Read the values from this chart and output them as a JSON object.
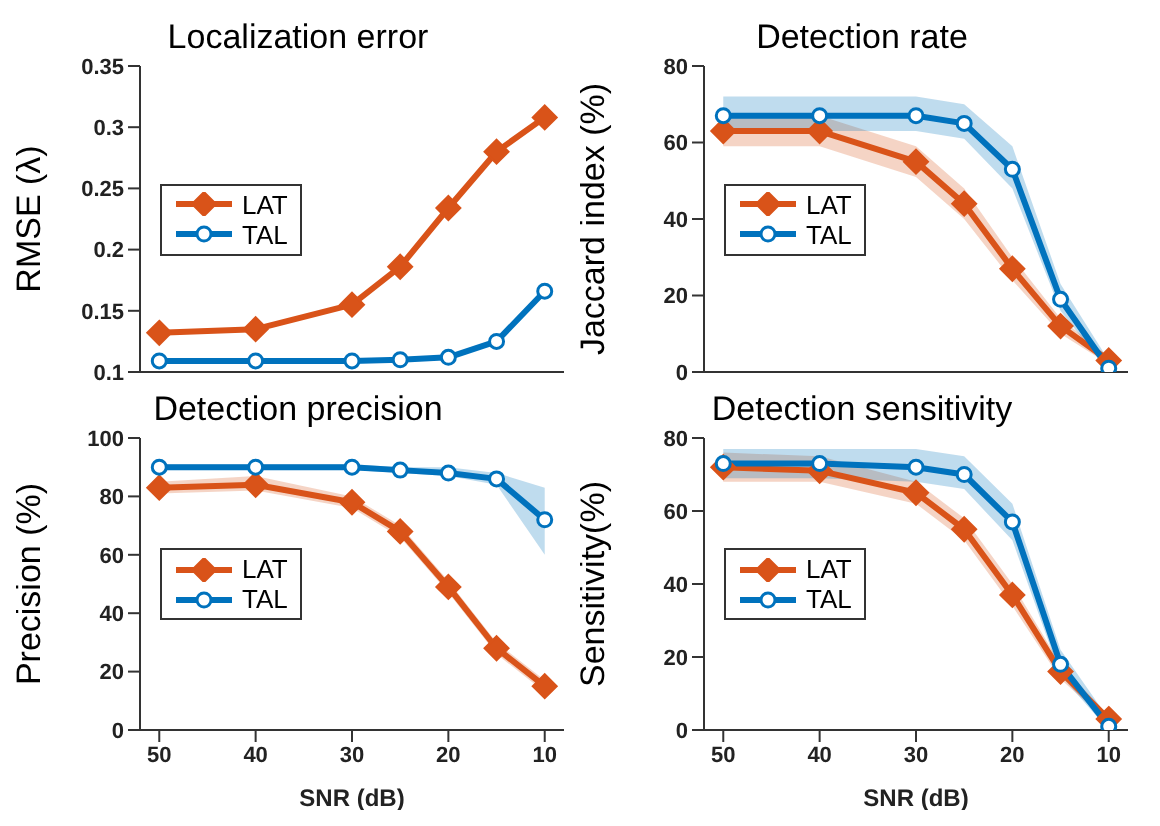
{
  "chart_data": [
    {
      "type": "line",
      "title": "Localization error",
      "ylabel": "RMSE (λ)",
      "x": [
        50,
        40,
        30,
        25,
        20,
        15,
        10
      ],
      "xlim": [
        52,
        8
      ],
      "xticks": [
        50,
        40,
        30,
        20,
        10
      ],
      "ylim": [
        0.1,
        0.35
      ],
      "yticks": [
        0.1,
        0.15,
        0.2,
        0.25,
        0.3,
        0.35
      ],
      "tick_labels": "y",
      "legend": "left",
      "grid": false,
      "line_style": "solid",
      "series": [
        {
          "name": "LAT",
          "color": "#d95319",
          "marker": "diamond",
          "values": [
            0.132,
            0.135,
            0.155,
            0.186,
            0.234,
            0.28,
            0.308
          ]
        },
        {
          "name": "TAL",
          "color": "#0072bd",
          "marker": "circle",
          "values": [
            0.109,
            0.109,
            0.109,
            0.11,
            0.112,
            0.125,
            0.166
          ]
        }
      ]
    },
    {
      "type": "line",
      "title": "Detection rate",
      "ylabel": "Jaccard index (%)",
      "x": [
        50,
        40,
        30,
        25,
        20,
        15,
        10
      ],
      "xlim": [
        52,
        8
      ],
      "xticks": [
        50,
        40,
        30,
        20,
        10
      ],
      "ylim": [
        0,
        80
      ],
      "yticks": [
        0,
        20,
        40,
        60,
        80
      ],
      "tick_labels": "y",
      "legend": "left",
      "grid": false,
      "line_style": "solid",
      "series": [
        {
          "name": "LAT",
          "color": "#d95319",
          "marker": "diamond",
          "values": [
            63,
            63,
            55,
            44,
            27,
            12,
            3
          ],
          "lower": [
            59,
            59,
            51,
            40,
            24,
            10,
            2
          ],
          "upper": [
            67,
            67,
            59,
            48,
            30,
            14,
            4
          ]
        },
        {
          "name": "TAL",
          "color": "#0072bd",
          "marker": "circle",
          "values": [
            67,
            67,
            67,
            65,
            53,
            19,
            1
          ],
          "lower": [
            63,
            63,
            63,
            61,
            48,
            16,
            0
          ],
          "upper": [
            72,
            72,
            72,
            70,
            59,
            23,
            3
          ]
        }
      ]
    },
    {
      "type": "line",
      "title": "Detection precision",
      "xlabel": "SNR (dB)",
      "ylabel": "Precision (%)",
      "x": [
        50,
        40,
        30,
        25,
        20,
        15,
        10
      ],
      "xlim": [
        52,
        8
      ],
      "xticks": [
        50,
        40,
        30,
        20,
        10
      ],
      "ylim": [
        0,
        100
      ],
      "yticks": [
        0,
        20,
        40,
        60,
        80,
        100
      ],
      "legend": "left",
      "grid": false,
      "line_style": "solid",
      "series": [
        {
          "name": "LAT",
          "color": "#d95319",
          "marker": "diamond",
          "values": [
            83,
            84,
            78,
            68,
            49,
            28,
            15
          ],
          "lower": [
            81,
            82,
            76,
            66,
            47,
            26,
            13
          ],
          "upper": [
            85,
            87,
            80,
            70,
            51,
            30,
            17
          ]
        },
        {
          "name": "TAL",
          "color": "#0072bd",
          "marker": "circle",
          "values": [
            90,
            90,
            90,
            89,
            88,
            86,
            72
          ],
          "lower": [
            89,
            89,
            89,
            88,
            87,
            84,
            60
          ],
          "upper": [
            91,
            91,
            91,
            90,
            90,
            88,
            83
          ]
        }
      ]
    },
    {
      "type": "line",
      "title": "Detection sensitivity",
      "xlabel": "SNR (dB)",
      "ylabel": "Sensitivity(%)",
      "x": [
        50,
        40,
        30,
        25,
        20,
        15,
        10
      ],
      "xlim": [
        52,
        8
      ],
      "xticks": [
        50,
        40,
        30,
        20,
        10
      ],
      "ylim": [
        0,
        80
      ],
      "yticks": [
        0,
        20,
        40,
        60,
        80
      ],
      "legend": "left",
      "grid": false,
      "line_style": "solid",
      "series": [
        {
          "name": "LAT",
          "color": "#d95319",
          "marker": "diamond",
          "values": [
            72,
            71,
            65,
            55,
            37,
            16,
            3
          ],
          "lower": [
            68,
            68,
            62,
            52,
            34,
            14,
            2
          ],
          "upper": [
            76,
            75,
            68,
            58,
            40,
            18,
            4
          ]
        },
        {
          "name": "TAL",
          "color": "#0072bd",
          "marker": "circle",
          "values": [
            73,
            73,
            72,
            70,
            57,
            18,
            1
          ],
          "lower": [
            69,
            69,
            68,
            66,
            52,
            15,
            0
          ],
          "upper": [
            77,
            77,
            77,
            75,
            62,
            22,
            3
          ]
        }
      ]
    }
  ]
}
